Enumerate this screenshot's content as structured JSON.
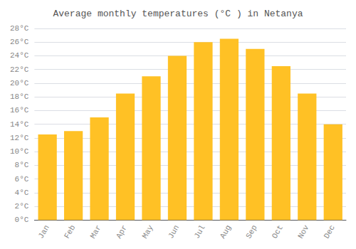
{
  "chart_data": {
    "type": "bar",
    "title": "Average monthly temperatures (°C ) in Netanya",
    "categories": [
      "Jan",
      "Feb",
      "Mar",
      "Apr",
      "May",
      "Jun",
      "Jul",
      "Aug",
      "Sep",
      "Oct",
      "Nov",
      "Dec"
    ],
    "values": [
      12.5,
      13.0,
      15.0,
      18.5,
      21.0,
      24.0,
      26.0,
      26.5,
      25.0,
      22.5,
      18.5,
      14.0
    ],
    "color": "#FFC125",
    "ylim": [
      0,
      28
    ],
    "yticks": [
      {
        "value": 0,
        "label": "0°C"
      },
      {
        "value": 2,
        "label": "2°C"
      },
      {
        "value": 4,
        "label": "4°C"
      },
      {
        "value": 6,
        "label": "6°C"
      },
      {
        "value": 8,
        "label": "8°C"
      },
      {
        "value": 10,
        "label": "10°C"
      },
      {
        "value": 12,
        "label": "12°C"
      },
      {
        "value": 14,
        "label": "14°C"
      },
      {
        "value": 16,
        "label": "16°C"
      },
      {
        "value": 18,
        "label": "18°C"
      },
      {
        "value": 20,
        "label": "20°C"
      },
      {
        "value": 22,
        "label": "22°C"
      },
      {
        "value": 24,
        "label": "24°C"
      },
      {
        "value": 26,
        "label": "26°C"
      },
      {
        "value": 28,
        "label": "28°C"
      }
    ],
    "grid": true
  }
}
